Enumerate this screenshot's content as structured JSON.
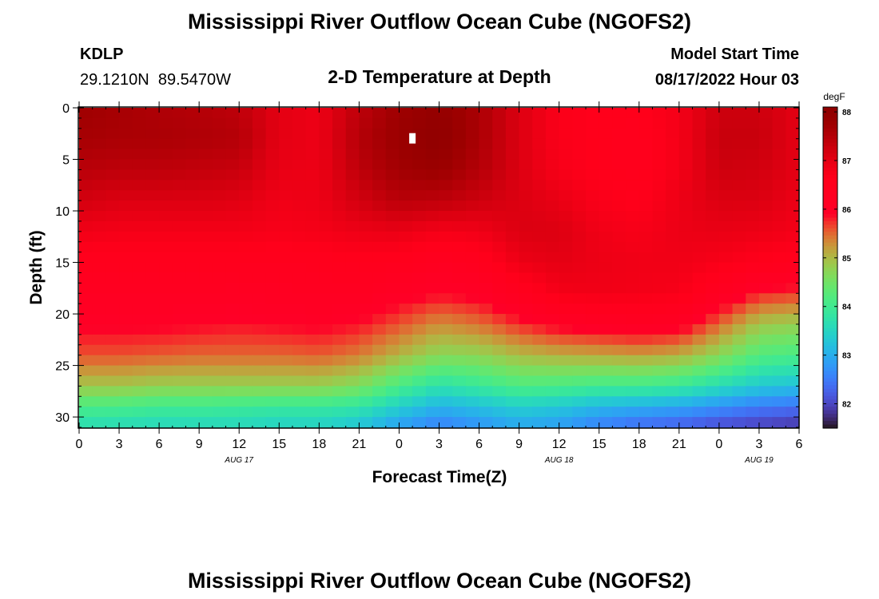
{
  "chart_data": {
    "type": "heatmap",
    "title": "Mississippi River Outflow Ocean Cube (NGOFS2)",
    "footer_title": "Mississippi River Outflow Ocean Cube (NGOFS2)",
    "station": {
      "id": "KDLP",
      "coords": "29.1210N  89.5470W"
    },
    "subtitle": "2-D Temperature at Depth",
    "model_start": {
      "label": "Model Start Time",
      "value": "08/17/2022 Hour 03"
    },
    "xlabel": "Forecast Time(Z)",
    "ylabel": "Depth (ft)",
    "x_tick_labels": [
      "0",
      "3",
      "6",
      "9",
      "12",
      "15",
      "18",
      "21",
      "0",
      "3",
      "6",
      "9",
      "12",
      "15",
      "18",
      "21",
      "0",
      "3",
      "6"
    ],
    "date_labels": [
      {
        "text": "AUG 17",
        "hour": 12
      },
      {
        "text": "AUG 18",
        "hour": 36
      },
      {
        "text": "AUG 19",
        "hour": 51
      }
    ],
    "x_hours_range": [
      0,
      54
    ],
    "y_ticks": [
      "0",
      "5",
      "10",
      "15",
      "20",
      "25",
      "30"
    ],
    "y_range": [
      0,
      31
    ],
    "y_inverted": true,
    "colorbar": {
      "unit": "degF",
      "min": 81.5,
      "max": 88.1,
      "ticks": [
        "88",
        "87",
        "86",
        "85",
        "84",
        "83",
        "82"
      ],
      "colormap": "turbo"
    },
    "marker": {
      "hour": 25,
      "depth": 3
    },
    "value_grid": {
      "description": "Temperature (degF) on a coarse grid: rows are depths, columns are forecast hours",
      "hours": [
        0,
        3,
        6,
        9,
        12,
        15,
        18,
        21,
        24,
        27,
        30,
        33,
        36,
        39,
        42,
        45,
        48,
        51,
        54
      ],
      "depths": [
        0,
        3,
        6,
        9,
        12,
        15,
        18,
        21,
        24,
        27,
        29,
        31
      ],
      "values": [
        [
          87.75,
          87.65,
          87.55,
          87.5,
          87.4,
          87.0,
          86.9,
          87.4,
          87.75,
          87.9,
          87.6,
          87.1,
          86.7,
          86.6,
          86.6,
          86.8,
          87.25,
          87.25,
          87.0
        ],
        [
          87.65,
          87.6,
          87.6,
          87.55,
          87.5,
          87.0,
          86.9,
          87.5,
          87.8,
          88.0,
          87.6,
          87.1,
          86.7,
          86.6,
          86.5,
          86.8,
          87.3,
          87.3,
          87.0
        ],
        [
          87.45,
          87.4,
          87.4,
          87.35,
          87.3,
          86.95,
          86.9,
          87.4,
          87.7,
          87.8,
          87.5,
          87.1,
          86.75,
          86.6,
          86.5,
          86.8,
          87.25,
          87.2,
          87.0
        ],
        [
          87.2,
          87.1,
          87.1,
          87.1,
          87.05,
          86.85,
          86.9,
          87.2,
          87.45,
          87.4,
          87.25,
          87.1,
          86.95,
          86.7,
          86.6,
          86.9,
          87.1,
          87.1,
          86.9
        ],
        [
          86.85,
          86.8,
          86.8,
          86.8,
          86.8,
          86.75,
          86.8,
          86.9,
          86.95,
          86.8,
          86.85,
          87.1,
          87.1,
          86.85,
          86.75,
          86.9,
          86.95,
          86.9,
          86.8
        ],
        [
          86.5,
          86.5,
          86.5,
          86.5,
          86.5,
          86.45,
          86.5,
          86.55,
          86.5,
          86.3,
          86.45,
          86.9,
          87.0,
          86.9,
          86.85,
          86.85,
          86.75,
          86.6,
          86.5
        ],
        [
          86.25,
          86.25,
          86.25,
          86.25,
          86.2,
          86.2,
          86.25,
          86.25,
          86.05,
          85.9,
          86.0,
          86.4,
          86.8,
          86.85,
          86.8,
          86.75,
          86.3,
          85.8,
          85.7
        ],
        [
          85.95,
          85.95,
          85.95,
          85.9,
          85.85,
          85.9,
          85.95,
          85.85,
          85.6,
          85.3,
          85.45,
          85.75,
          86.0,
          86.1,
          86.2,
          86.1,
          85.5,
          84.9,
          84.8
        ],
        [
          85.6,
          85.6,
          85.55,
          85.5,
          85.5,
          85.5,
          85.55,
          85.4,
          85.05,
          84.7,
          84.75,
          85.0,
          85.1,
          85.15,
          85.2,
          85.1,
          84.7,
          84.2,
          84.1
        ],
        [
          84.9,
          84.9,
          84.8,
          84.8,
          84.8,
          84.8,
          84.8,
          84.6,
          84.1,
          83.7,
          83.9,
          84.15,
          84.1,
          84.0,
          84.0,
          83.9,
          83.6,
          83.3,
          83.2
        ],
        [
          84.1,
          84.1,
          84.0,
          84.0,
          83.95,
          83.9,
          83.9,
          83.8,
          83.4,
          83.05,
          83.2,
          83.4,
          83.3,
          83.1,
          83.0,
          82.9,
          82.7,
          82.5,
          82.4
        ],
        [
          83.6,
          83.55,
          83.5,
          83.5,
          83.5,
          83.4,
          83.4,
          83.2,
          82.8,
          82.5,
          82.7,
          82.9,
          82.8,
          82.5,
          82.3,
          82.2,
          82.0,
          81.9,
          81.8
        ]
      ]
    }
  }
}
